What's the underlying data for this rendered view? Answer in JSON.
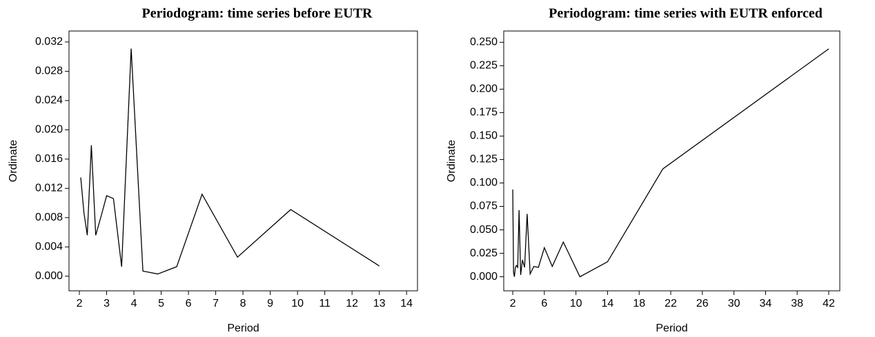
{
  "chart_data": [
    {
      "type": "line",
      "title": "Periodogram: time series before EUTR",
      "x_label": "Period",
      "y_label": "Ordinate",
      "color": "#000000",
      "x": [
        2.05,
        2.17,
        2.29,
        2.44,
        2.6,
        2.79,
        3.0,
        3.25,
        3.55,
        3.9,
        4.33,
        4.875,
        5.57,
        6.5,
        7.8,
        9.75,
        13.0
      ],
      "values": [
        0.0135,
        0.0086,
        0.0056,
        0.0179,
        0.0056,
        0.0081,
        0.011,
        0.0106,
        0.0013,
        0.0311,
        0.0007,
        0.0003,
        0.0013,
        0.0112,
        0.0026,
        0.0091,
        0.0014
      ],
      "xlim": [
        1.62,
        14.4
      ],
      "ylim": [
        -0.002,
        0.0335
      ],
      "xticks": [
        2,
        3,
        4,
        5,
        6,
        7,
        8,
        9,
        10,
        11,
        12,
        13,
        14
      ],
      "yticks": [
        {
          "value": 0,
          "label": "0.000"
        },
        {
          "value": 0.004,
          "label": "0.004"
        },
        {
          "value": 0.008,
          "label": "0.008"
        },
        {
          "value": 0.012,
          "label": "0.012"
        },
        {
          "value": 0.016,
          "label": "0.016"
        },
        {
          "value": 0.02,
          "label": "0.020"
        },
        {
          "value": 0.024,
          "label": "0.024"
        },
        {
          "value": 0.028,
          "label": "0.028"
        },
        {
          "value": 0.032,
          "label": "0.032"
        }
      ]
    },
    {
      "type": "line",
      "title": "Periodogram: time series with EUTR enforced",
      "x_label": "Period",
      "y_label": "Ordinate",
      "color": "#000000",
      "x": [
        2.0,
        2.1,
        2.21,
        2.33,
        2.47,
        2.63,
        2.8,
        3.0,
        3.23,
        3.5,
        3.82,
        4.2,
        4.67,
        5.25,
        6,
        7,
        8.4,
        10.5,
        14,
        21,
        42
      ],
      "values": [
        0.093,
        0.005,
        0.0,
        0.01,
        0.012,
        0.01,
        0.071,
        0.002,
        0.018,
        0.01,
        0.067,
        0.003,
        0.011,
        0.01,
        0.031,
        0.011,
        0.037,
        0.0,
        0.016,
        0.115,
        0.243
      ],
      "xlim": [
        0.86,
        43.4
      ],
      "ylim": [
        -0.015,
        0.262
      ],
      "xticks": [
        2,
        6,
        10,
        14,
        18,
        22,
        26,
        30,
        34,
        38,
        42
      ],
      "yticks": [
        {
          "value": 0,
          "label": "0.000"
        },
        {
          "value": 0.025,
          "label": "0.025"
        },
        {
          "value": 0.05,
          "label": "0.050"
        },
        {
          "value": 0.075,
          "label": "0.075"
        },
        {
          "value": 0.1,
          "label": "0.100"
        },
        {
          "value": 0.125,
          "label": "0.125"
        },
        {
          "value": 0.15,
          "label": "0.150"
        },
        {
          "value": 0.175,
          "label": "0.175"
        },
        {
          "value": 0.2,
          "label": "0.200"
        },
        {
          "value": 0.225,
          "label": "0.225"
        },
        {
          "value": 0.25,
          "label": "0.250"
        }
      ]
    }
  ]
}
